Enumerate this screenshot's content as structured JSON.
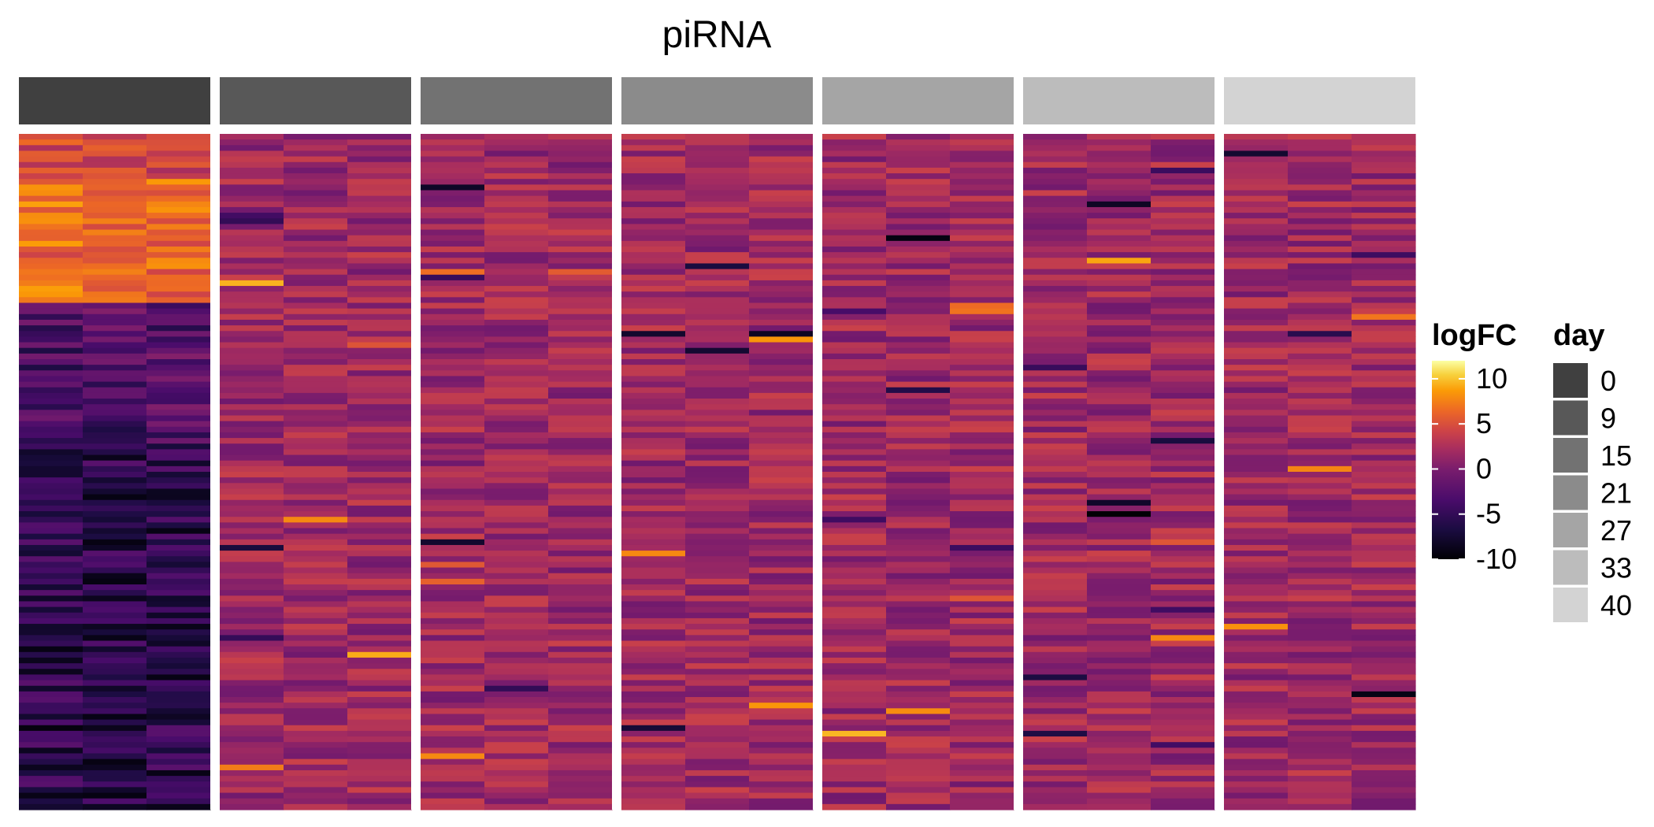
{
  "chart_data": {
    "type": "heatmap",
    "title": "piRNA",
    "rows": 120,
    "replicates_per_day": 3,
    "days": [
      0,
      9,
      15,
      21,
      27,
      33,
      40
    ],
    "day_colors": [
      "#404040",
      "#585858",
      "#727272",
      "#8b8b8b",
      "#a5a5a5",
      "#bcbcbc",
      "#d3d3d3"
    ],
    "value_range": [
      -10,
      12
    ],
    "colormap": "inferno",
    "row_groups": [
      {
        "rows": "1-30",
        "day0_mean": 6.0,
        "other_days_mean": 1.0
      },
      {
        "rows": "31-120",
        "day0_mean": -6.0,
        "other_days_mean": 0.5
      }
    ],
    "legend": {
      "color_title": "logFC",
      "color_ticks": [
        10,
        5,
        0,
        -5,
        -10
      ],
      "day_title": "day",
      "day_labels": [
        "0",
        "9",
        "15",
        "21",
        "27",
        "33",
        "40"
      ]
    },
    "notes": "Cell-level values are not printed on the chart; each row is one piRNA, each column one sample (3 per day)."
  }
}
